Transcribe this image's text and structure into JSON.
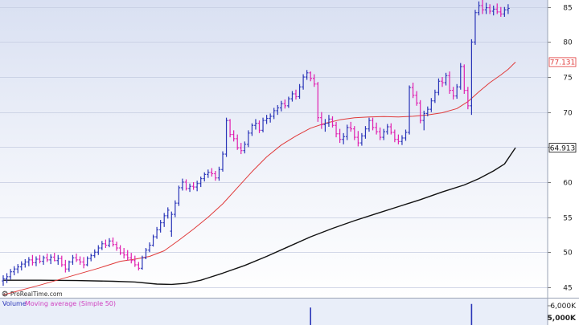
{
  "chart_data": {
    "type": "candlestick",
    "title": "",
    "xlabel": "",
    "ylabel": "",
    "ylim": [
      43.5,
      86
    ],
    "y_ticks": [
      45,
      50,
      55,
      60,
      65,
      70,
      75,
      80,
      85
    ],
    "grid": true,
    "last_price_tag": "64.913",
    "ma_short_tag": "77.131",
    "colors": {
      "up": "#2a35b8",
      "down": "#e020b0",
      "ma_short": "#e03a3a",
      "ma_long": "#111111",
      "volume": "#2a35b8"
    },
    "bars": [
      [
        45.9,
        46.7,
        45.2,
        46.2
      ],
      [
        46.2,
        47.0,
        45.6,
        46.5
      ],
      [
        46.5,
        47.6,
        46.1,
        47.2
      ],
      [
        47.2,
        48.0,
        46.7,
        47.6
      ],
      [
        47.6,
        48.3,
        47.0,
        47.9
      ],
      [
        47.9,
        48.7,
        47.4,
        48.3
      ],
      [
        48.3,
        49.0,
        47.8,
        48.6
      ],
      [
        48.6,
        49.3,
        48.0,
        48.9
      ],
      [
        48.9,
        49.6,
        48.1,
        48.5
      ],
      [
        48.5,
        49.4,
        48.0,
        49.0
      ],
      [
        49.0,
        49.6,
        48.4,
        48.7
      ],
      [
        48.7,
        49.5,
        48.2,
        49.2
      ],
      [
        49.2,
        49.8,
        48.6,
        48.9
      ],
      [
        48.9,
        49.7,
        48.3,
        49.3
      ],
      [
        49.3,
        49.9,
        48.7,
        48.8
      ],
      [
        48.8,
        49.6,
        48.2,
        49.1
      ],
      [
        49.1,
        49.5,
        47.9,
        48.2
      ],
      [
        48.2,
        48.9,
        47.1,
        47.6
      ],
      [
        47.6,
        48.8,
        47.2,
        48.6
      ],
      [
        48.6,
        49.6,
        48.2,
        49.2
      ],
      [
        49.2,
        49.8,
        48.6,
        48.9
      ],
      [
        48.9,
        49.4,
        48.2,
        48.6
      ],
      [
        48.6,
        49.3,
        47.7,
        48.2
      ],
      [
        48.2,
        49.4,
        48.0,
        49.1
      ],
      [
        49.1,
        49.8,
        48.7,
        49.5
      ],
      [
        49.5,
        50.4,
        49.2,
        50.0
      ],
      [
        50.0,
        51.0,
        49.6,
        50.6
      ],
      [
        50.6,
        51.6,
        50.3,
        51.2
      ],
      [
        51.2,
        51.8,
        50.6,
        51.0
      ],
      [
        51.0,
        52.0,
        50.7,
        51.6
      ],
      [
        51.6,
        52.1,
        50.8,
        51.1
      ],
      [
        51.1,
        51.5,
        50.2,
        50.6
      ],
      [
        50.6,
        51.0,
        49.6,
        49.9
      ],
      [
        49.9,
        50.6,
        49.1,
        49.6
      ],
      [
        49.6,
        50.3,
        48.8,
        49.2
      ],
      [
        49.2,
        49.9,
        48.4,
        48.8
      ],
      [
        48.8,
        49.5,
        47.9,
        48.2
      ],
      [
        48.2,
        48.6,
        47.4,
        47.7
      ],
      [
        47.7,
        49.5,
        47.5,
        49.2
      ],
      [
        49.2,
        50.6,
        49.0,
        50.3
      ],
      [
        50.3,
        51.4,
        50.0,
        51.0
      ],
      [
        51.0,
        52.5,
        50.8,
        52.2
      ],
      [
        52.2,
        53.6,
        51.9,
        53.2
      ],
      [
        53.2,
        54.6,
        52.8,
        54.2
      ],
      [
        54.2,
        55.6,
        53.6,
        55.2
      ],
      [
        55.2,
        56.4,
        54.8,
        56.0
      ],
      [
        53.0,
        55.8,
        52.2,
        55.4
      ],
      [
        55.4,
        57.4,
        55.0,
        57.0
      ],
      [
        57.0,
        59.5,
        56.6,
        59.2
      ],
      [
        59.2,
        60.5,
        58.8,
        60.0
      ],
      [
        60.0,
        60.4,
        58.8,
        59.1
      ],
      [
        59.1,
        59.8,
        58.6,
        59.4
      ],
      [
        59.4,
        60.0,
        58.9,
        59.3
      ],
      [
        59.3,
        60.2,
        58.7,
        59.8
      ],
      [
        59.8,
        60.8,
        59.3,
        60.5
      ],
      [
        60.5,
        61.4,
        60.1,
        61.1
      ],
      [
        61.1,
        61.8,
        60.6,
        61.4
      ],
      [
        61.4,
        62.0,
        60.8,
        61.2
      ],
      [
        61.2,
        61.6,
        60.2,
        60.6
      ],
      [
        60.6,
        62.2,
        60.2,
        61.8
      ],
      [
        61.8,
        64.4,
        61.5,
        64.0
      ],
      [
        64.0,
        69.2,
        63.6,
        68.8
      ],
      [
        68.8,
        69.0,
        66.4,
        66.8
      ],
      [
        66.8,
        67.4,
        65.8,
        66.2
      ],
      [
        66.2,
        66.8,
        64.6,
        64.9
      ],
      [
        64.9,
        65.6,
        64.0,
        64.5
      ],
      [
        64.5,
        65.8,
        64.1,
        65.4
      ],
      [
        65.4,
        67.4,
        65.0,
        67.0
      ],
      [
        67.0,
        68.4,
        66.6,
        68.1
      ],
      [
        68.1,
        69.0,
        67.5,
        68.4
      ],
      [
        68.4,
        68.8,
        67.0,
        67.4
      ],
      [
        67.4,
        69.2,
        67.1,
        68.8
      ],
      [
        68.8,
        69.6,
        68.3,
        69.1
      ],
      [
        69.1,
        69.8,
        68.5,
        69.4
      ],
      [
        69.4,
        70.6,
        69.0,
        70.2
      ],
      [
        70.2,
        71.0,
        69.6,
        70.6
      ],
      [
        70.6,
        71.6,
        70.1,
        71.2
      ],
      [
        71.2,
        71.8,
        70.5,
        70.9
      ],
      [
        70.9,
        72.2,
        70.6,
        71.9
      ],
      [
        71.9,
        73.0,
        71.5,
        72.6
      ],
      [
        72.6,
        73.2,
        71.8,
        72.2
      ],
      [
        72.2,
        74.0,
        71.9,
        73.6
      ],
      [
        73.6,
        75.4,
        73.2,
        75.0
      ],
      [
        75.0,
        76.0,
        74.6,
        75.6
      ],
      [
        75.6,
        75.8,
        74.4,
        74.8
      ],
      [
        74.8,
        75.4,
        73.6,
        74.0
      ],
      [
        74.0,
        74.3,
        68.6,
        69.2
      ],
      [
        69.2,
        70.0,
        67.6,
        68.2
      ],
      [
        68.2,
        69.0,
        67.2,
        68.4
      ],
      [
        68.4,
        69.6,
        67.9,
        69.0
      ],
      [
        69.0,
        69.4,
        67.8,
        68.1
      ],
      [
        68.1,
        68.6,
        66.4,
        66.9
      ],
      [
        66.9,
        67.6,
        65.6,
        66.1
      ],
      [
        66.1,
        67.0,
        65.4,
        66.5
      ],
      [
        66.5,
        68.2,
        66.0,
        67.8
      ],
      [
        67.8,
        68.6,
        67.2,
        67.6
      ],
      [
        67.6,
        68.0,
        66.0,
        66.4
      ],
      [
        66.4,
        67.3,
        65.1,
        65.6
      ],
      [
        65.6,
        67.0,
        65.2,
        66.6
      ],
      [
        66.6,
        68.0,
        66.2,
        67.6
      ],
      [
        67.6,
        69.2,
        67.2,
        68.8
      ],
      [
        68.8,
        69.2,
        67.4,
        67.8
      ],
      [
        67.8,
        68.5,
        66.8,
        67.2
      ],
      [
        67.2,
        67.8,
        66.0,
        66.4
      ],
      [
        66.4,
        67.6,
        66.0,
        67.2
      ],
      [
        67.2,
        68.3,
        66.8,
        67.9
      ],
      [
        67.9,
        68.4,
        66.8,
        67.1
      ],
      [
        67.1,
        67.5,
        65.7,
        66.1
      ],
      [
        66.1,
        66.8,
        65.4,
        65.8
      ],
      [
        65.8,
        66.7,
        65.3,
        66.3
      ],
      [
        66.3,
        67.5,
        65.9,
        67.1
      ],
      [
        67.1,
        73.8,
        66.8,
        73.5
      ],
      [
        73.5,
        74.2,
        72.0,
        72.4
      ],
      [
        72.4,
        73.0,
        70.9,
        71.3
      ],
      [
        71.3,
        71.7,
        68.4,
        68.8
      ],
      [
        68.8,
        70.2,
        67.4,
        69.8
      ],
      [
        69.8,
        70.8,
        69.4,
        70.4
      ],
      [
        70.4,
        72.0,
        70.0,
        71.6
      ],
      [
        71.6,
        73.2,
        71.3,
        72.8
      ],
      [
        72.8,
        74.8,
        72.4,
        74.4
      ],
      [
        74.4,
        75.0,
        73.6,
        74.2
      ],
      [
        74.2,
        75.6,
        73.8,
        75.2
      ],
      [
        75.2,
        75.8,
        72.6,
        73.1
      ],
      [
        73.1,
        73.6,
        71.8,
        72.3
      ],
      [
        72.3,
        74.0,
        71.9,
        73.6
      ],
      [
        73.6,
        77.0,
        73.2,
        76.5
      ],
      [
        76.5,
        76.8,
        72.6,
        73.1
      ],
      [
        73.1,
        73.6,
        70.4,
        70.9
      ],
      [
        70.9,
        80.4,
        69.6,
        80.0
      ],
      [
        80.0,
        84.6,
        79.6,
        84.2
      ],
      [
        84.2,
        85.8,
        83.8,
        85.2
      ],
      [
        85.2,
        86.0,
        84.0,
        84.6
      ],
      [
        84.6,
        85.6,
        84.0,
        84.9
      ],
      [
        84.9,
        85.4,
        84.0,
        84.4
      ],
      [
        84.4,
        85.2,
        83.8,
        84.7
      ],
      [
        84.7,
        85.5,
        84.0,
        84.3
      ],
      [
        84.3,
        85.0,
        83.6,
        84.0
      ],
      [
        84.0,
        85.0,
        83.6,
        84.6
      ],
      [
        84.6,
        85.4,
        84.0,
        84.8
      ]
    ],
    "ma_short": [
      [
        0,
        43.9
      ],
      [
        10,
        45.3
      ],
      [
        20,
        46.8
      ],
      [
        26,
        47.7
      ],
      [
        32,
        48.7
      ],
      [
        36,
        49.0
      ],
      [
        40,
        49.4
      ],
      [
        44,
        50.2
      ],
      [
        48,
        51.7
      ],
      [
        52,
        53.3
      ],
      [
        56,
        55.0
      ],
      [
        60,
        56.9
      ],
      [
        64,
        59.2
      ],
      [
        68,
        61.5
      ],
      [
        72,
        63.6
      ],
      [
        76,
        65.3
      ],
      [
        80,
        66.6
      ],
      [
        84,
        67.7
      ],
      [
        88,
        68.4
      ],
      [
        92,
        68.9
      ],
      [
        96,
        69.2
      ],
      [
        100,
        69.3
      ],
      [
        104,
        69.35
      ],
      [
        108,
        69.3
      ],
      [
        112,
        69.4
      ],
      [
        116,
        69.6
      ],
      [
        120,
        69.9
      ],
      [
        124,
        70.5
      ],
      [
        127,
        71.5
      ],
      [
        130,
        72.9
      ],
      [
        133,
        74.2
      ],
      [
        136,
        75.3
      ],
      [
        138,
        76.1
      ],
      [
        140,
        77.131
      ]
    ],
    "ma_long": [
      [
        0,
        46.0
      ],
      [
        10,
        46.0
      ],
      [
        20,
        45.95
      ],
      [
        30,
        45.85
      ],
      [
        36,
        45.75
      ],
      [
        42,
        45.45
      ],
      [
        46,
        45.4
      ],
      [
        50,
        45.55
      ],
      [
        54,
        46.0
      ],
      [
        60,
        47.0
      ],
      [
        66,
        48.1
      ],
      [
        72,
        49.4
      ],
      [
        78,
        50.8
      ],
      [
        84,
        52.2
      ],
      [
        90,
        53.4
      ],
      [
        96,
        54.5
      ],
      [
        102,
        55.5
      ],
      [
        108,
        56.5
      ],
      [
        114,
        57.5
      ],
      [
        120,
        58.6
      ],
      [
        126,
        59.6
      ],
      [
        130,
        60.5
      ],
      [
        134,
        61.6
      ],
      [
        137,
        62.6
      ],
      [
        140,
        64.913
      ]
    ],
    "volume": {
      "label": "Volume",
      "ma_label": "Moving average (Simple 50)",
      "y_ticks": [
        "6,000K",
        "5,000K"
      ],
      "spikes": [
        {
          "index": 84,
          "value": 6200
        },
        {
          "index": 128,
          "value": 6500
        }
      ]
    },
    "source": "© ProRealTime.com"
  }
}
